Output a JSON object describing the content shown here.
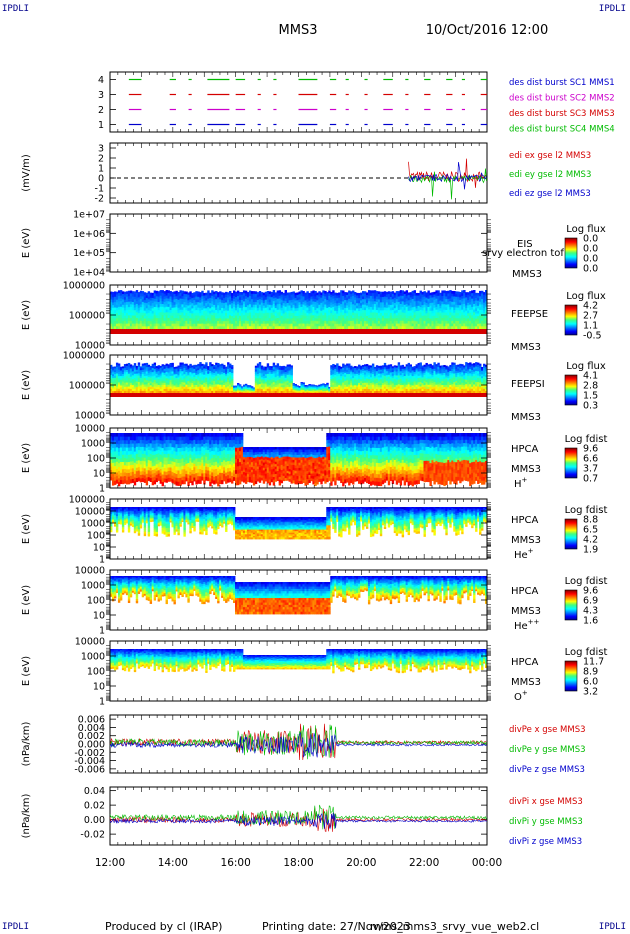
{
  "header": {
    "corner_label": "IPDLI",
    "spacecraft": "MMS3",
    "datetime": "10/Oct/2016 12:00"
  },
  "footer": {
    "produced_by": "Produced by cl (IRAP)",
    "printing_date": "Printing date: 27/Nov/2023",
    "filename": "mms_mms3_srvy_vue_web2.cl"
  },
  "time_axis": {
    "ticks": [
      "12:00",
      "14:00",
      "16:00",
      "18:00",
      "20:00",
      "22:00",
      "00:00"
    ]
  },
  "colors": {
    "red": "#d40000",
    "magenta": "#cc00cc",
    "green": "#00bb00",
    "blue": "#0000cc",
    "dark_label": "#000000"
  },
  "chart_data": [
    {
      "type": "line",
      "id": "burst",
      "yticks": [
        "4",
        "3",
        "2",
        "1"
      ],
      "ylim": [
        0.5,
        4.5
      ],
      "legend": [
        {
          "text": "des dist burst SC1 MMS1",
          "color": "#0000cc"
        },
        {
          "text": "des dist burst SC2 MMS2",
          "color": "#cc00cc"
        },
        {
          "text": "des dist burst SC3 MMS3",
          "color": "#d40000"
        },
        {
          "text": "des dist burst SC4 MMS4",
          "color": "#00bb00"
        }
      ],
      "intervals_hours": [
        [
          12.6,
          13.0
        ],
        [
          13.9,
          14.1
        ],
        [
          14.5,
          14.6
        ],
        [
          15.1,
          15.8
        ],
        [
          16.0,
          16.3
        ],
        [
          16.7,
          16.8
        ],
        [
          17.2,
          17.3
        ],
        [
          18.0,
          18.6
        ],
        [
          19.0,
          19.2
        ],
        [
          19.5,
          19.6
        ],
        [
          20.1,
          20.2
        ],
        [
          20.7,
          21.0
        ],
        [
          21.4,
          21.5
        ],
        [
          22.0,
          22.2
        ],
        [
          22.7,
          22.9
        ],
        [
          23.2,
          23.3
        ],
        [
          23.8,
          24.0
        ]
      ],
      "levels": [
        4,
        3,
        2,
        1
      ]
    },
    {
      "type": "line",
      "id": "edi",
      "ylabel": "(mV/m)",
      "yticks": [
        "3",
        "2",
        "1",
        "0",
        "-1",
        "-2"
      ],
      "ylim": [
        -2.5,
        3.5
      ],
      "legend": [
        {
          "text": "edi ex gse l2 MMS3",
          "color": "#d40000"
        },
        {
          "text": "edi ey gse l2 MMS3",
          "color": "#00bb00"
        },
        {
          "text": "edi ez gse l2 MMS3",
          "color": "#0000cc"
        }
      ],
      "data_start_hour": 21.5
    },
    {
      "type": "heatmap",
      "id": "eis",
      "ylabel": "E (eV)",
      "yticks": [
        "1e+07",
        "1e+06",
        "1e+05",
        "1e+04"
      ],
      "instrument": "EIS",
      "species": "MMS3",
      "overlay_text": "srvy electron tof",
      "colorbar_title": "Log flux",
      "colorbar_ticks": [
        "0.0",
        "0.0",
        "0.0",
        "0.0"
      ]
    },
    {
      "type": "heatmap",
      "id": "feepse",
      "ylabel": "E (eV)",
      "yticks": [
        "1000000",
        "100000",
        "10000"
      ],
      "instrument": "FEEPSE",
      "species": "MMS3",
      "colorbar_title": "Log flux",
      "colorbar_ticks": [
        "4.2",
        "2.7",
        "1.1",
        "-0.5"
      ]
    },
    {
      "type": "heatmap",
      "id": "feepsi",
      "ylabel": "E (eV)",
      "yticks": [
        "1000000",
        "100000",
        "10000"
      ],
      "instrument": "FEEPSI",
      "species": "MMS3",
      "colorbar_title": "Log flux",
      "colorbar_ticks": [
        "4.1",
        "2.8",
        "1.5",
        "0.3"
      ]
    },
    {
      "type": "heatmap",
      "id": "hpca_h",
      "ylabel": "E (eV)",
      "yticks": [
        "10000",
        "1000",
        "100",
        "10",
        "1"
      ],
      "instrument": "HPCA",
      "species": "MMS3",
      "ion": "H",
      "ion_charge": "+",
      "colorbar_title": "Log fdist",
      "colorbar_ticks": [
        "9.6",
        "6.6",
        "3.7",
        "0.7"
      ]
    },
    {
      "type": "heatmap",
      "id": "hpca_he1",
      "ylabel": "E (eV)",
      "yticks": [
        "100000",
        "10000",
        "1000",
        "100",
        "10",
        "1"
      ],
      "instrument": "HPCA",
      "species": "MMS3",
      "ion": "He",
      "ion_charge": "+",
      "colorbar_title": "Log fdist",
      "colorbar_ticks": [
        "8.8",
        "6.5",
        "4.2",
        "1.9"
      ]
    },
    {
      "type": "heatmap",
      "id": "hpca_he2",
      "ylabel": "E (eV)",
      "yticks": [
        "10000",
        "1000",
        "100",
        "10",
        "1"
      ],
      "instrument": "HPCA",
      "species": "MMS3",
      "ion": "He",
      "ion_charge": "++",
      "colorbar_title": "Log fdist",
      "colorbar_ticks": [
        "9.6",
        "6.9",
        "4.3",
        "1.6"
      ]
    },
    {
      "type": "heatmap",
      "id": "hpca_o",
      "ylabel": "E (eV)",
      "yticks": [
        "10000",
        "1000",
        "100",
        "10",
        "1"
      ],
      "instrument": "HPCA",
      "species": "MMS3",
      "ion": "O",
      "ion_charge": "+",
      "colorbar_title": "Log fdist",
      "colorbar_ticks": [
        "11.7",
        "8.9",
        "6.0",
        "3.2"
      ]
    },
    {
      "type": "line",
      "id": "divpe",
      "ylabel": "(nPa/km)",
      "yticks": [
        "0.006",
        "0.004",
        "0.002",
        "0.000",
        "-0.002",
        "-0.004",
        "-0.006"
      ],
      "ylim": [
        -0.007,
        0.007
      ],
      "legend": [
        {
          "text": "divPe x gse MMS3",
          "color": "#d40000"
        },
        {
          "text": "divPe y gse MMS3",
          "color": "#00bb00"
        },
        {
          "text": "divPe z gse MMS3",
          "color": "#0000cc"
        }
      ]
    },
    {
      "type": "line",
      "id": "divpi",
      "ylabel": "(nPa/km)",
      "yticks": [
        "0.04",
        "0.02",
        "0.00",
        "-0.02"
      ],
      "ylim": [
        -0.035,
        0.045
      ],
      "legend": [
        {
          "text": "divPi x gse MMS3",
          "color": "#d40000"
        },
        {
          "text": "divPi y gse MMS3",
          "color": "#00bb00"
        },
        {
          "text": "divPi z gse MMS3",
          "color": "#0000cc"
        }
      ]
    }
  ]
}
